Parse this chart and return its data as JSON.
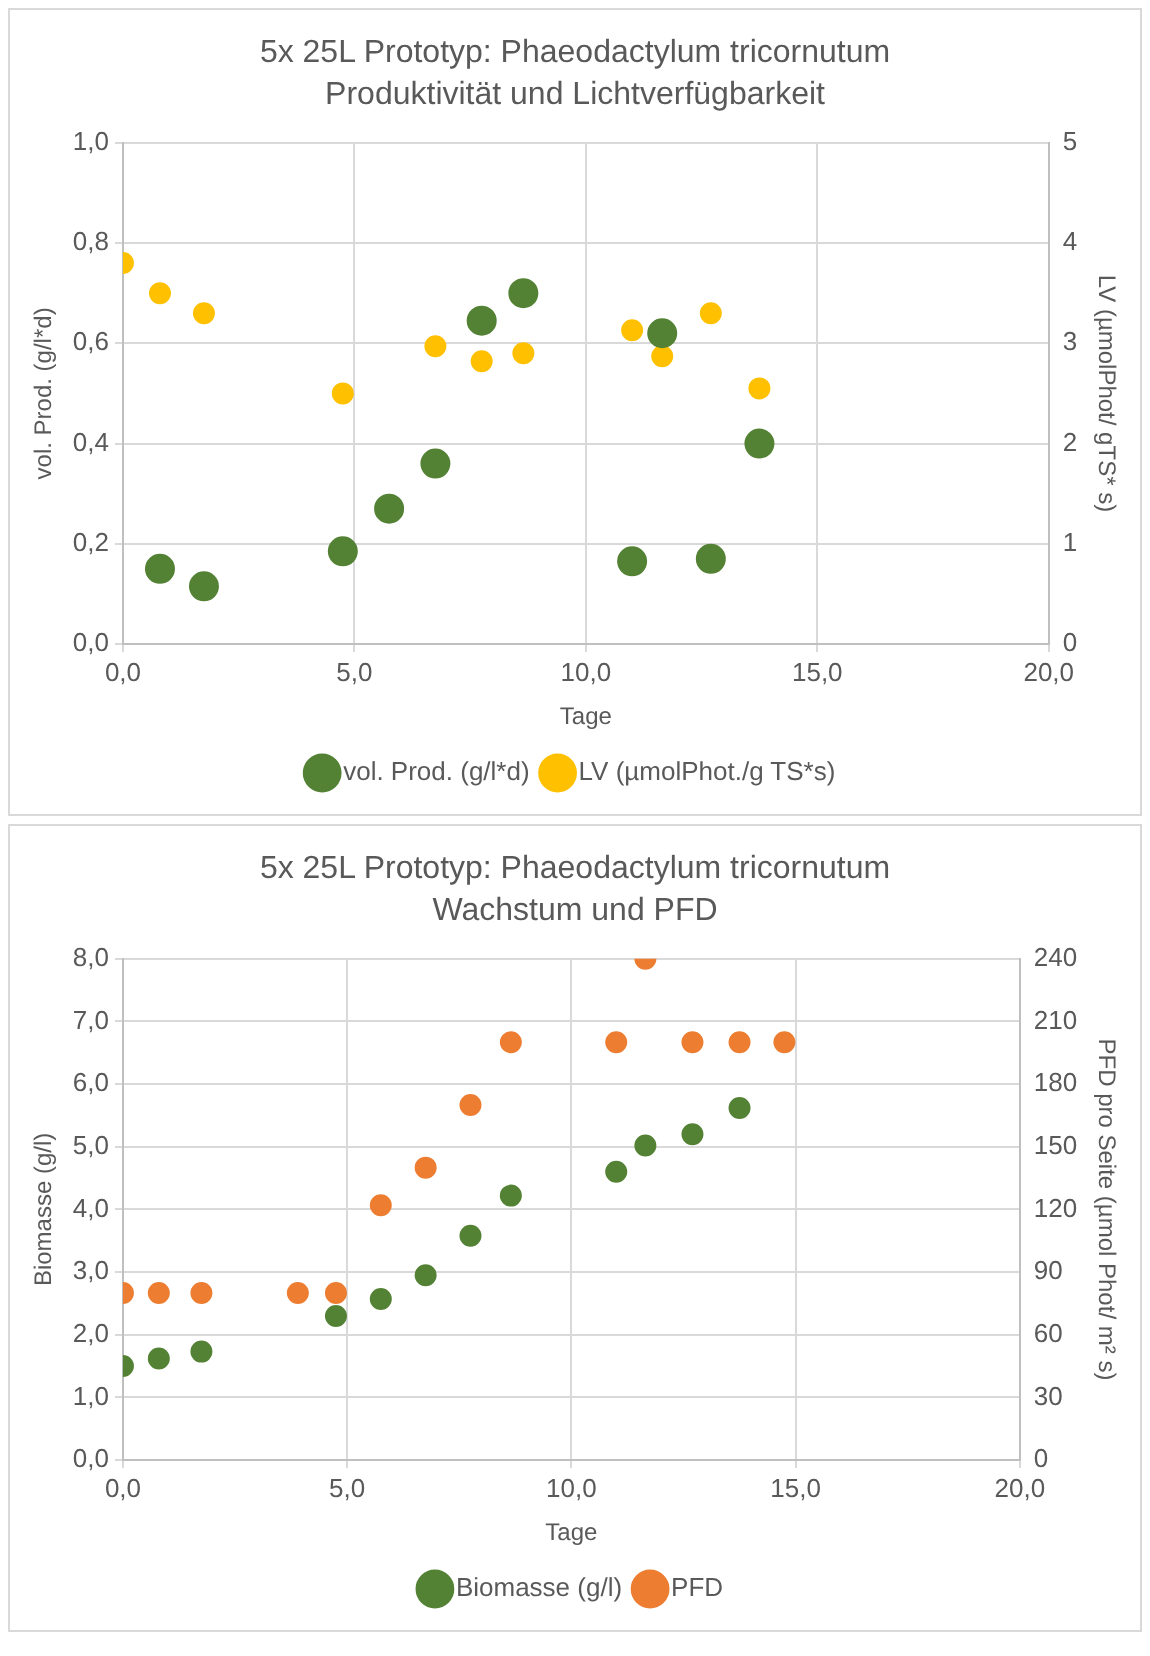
{
  "chart_data": [
    {
      "type": "scatter",
      "title": "5x 25L Prototyp: Phaeodactylum tricornutum",
      "subtitle": "Produktivität und Lichtverfügbarkeit",
      "xlabel": "Tage",
      "ylabel": "vol. Prod. (g/l*d)",
      "y2label": "LV (µmolPhot/ gTS* s)",
      "legend": "bottom",
      "grid": true,
      "marker": "circle",
      "xlim": [
        0,
        20
      ],
      "xticks": [
        {
          "value": 0,
          "label": "0,0"
        },
        {
          "value": 5,
          "label": "5,0"
        },
        {
          "value": 10,
          "label": "10,0"
        },
        {
          "value": 15,
          "label": "15,0"
        },
        {
          "value": 20,
          "label": "20,0"
        }
      ],
      "ylim": [
        0,
        1
      ],
      "yticks": [
        {
          "value": 0,
          "label": "0,0"
        },
        {
          "value": 0.2,
          "label": "0,2"
        },
        {
          "value": 0.4,
          "label": "0,4"
        },
        {
          "value": 0.6,
          "label": "0,6"
        },
        {
          "value": 0.8,
          "label": "0,8"
        },
        {
          "value": 1,
          "label": "1,0"
        }
      ],
      "y2lim": [
        0,
        5
      ],
      "y2ticks": [
        0,
        1,
        2,
        3,
        4,
        5
      ],
      "series": [
        {
          "name": "vol. Prod. (g/l*d)",
          "color": "#548235",
          "x": [
            0.8,
            1.75,
            4.75,
            5.75,
            6.75,
            7.75,
            8.65,
            11.0,
            11.65,
            12.7,
            13.75
          ],
          "values": [
            0.15,
            0.115,
            0.185,
            0.27,
            0.36,
            0.645,
            0.7,
            0.165,
            0.62,
            0.17,
            0.4
          ]
        },
        {
          "name": "LV (µmolPhot./g TS*s)",
          "color": "#ffc000",
          "axis": "y2",
          "x": [
            0,
            0.8,
            1.75,
            4.75,
            6.75,
            7.75,
            8.65,
            11.0,
            11.65,
            12.7,
            13.75
          ],
          "values": [
            3.8,
            3.5,
            3.3,
            2.5,
            2.97,
            2.82,
            2.9,
            3.13,
            2.87,
            3.3,
            2.55
          ]
        }
      ]
    },
    {
      "type": "scatter",
      "title": "5x 25L Prototyp: Phaeodactylum tricornutum",
      "subtitle": "Wachstum und PFD",
      "xlabel": "Tage",
      "ylabel": "Biomasse (g/l)",
      "y2label": "PFD pro Seite (µmol Phot/ m² s)",
      "legend": "bottom",
      "grid": true,
      "marker": "circle",
      "xlim": [
        0,
        20
      ],
      "xticks": [
        {
          "value": 0,
          "label": "0,0"
        },
        {
          "value": 5,
          "label": "5,0"
        },
        {
          "value": 10,
          "label": "10,0"
        },
        {
          "value": 15,
          "label": "15,0"
        },
        {
          "value": 20,
          "label": "20,0"
        }
      ],
      "ylim": [
        0,
        8
      ],
      "yticks": [
        {
          "value": 0,
          "label": "0,0"
        },
        {
          "value": 1,
          "label": "1,0"
        },
        {
          "value": 2,
          "label": "2,0"
        },
        {
          "value": 3,
          "label": "3,0"
        },
        {
          "value": 4,
          "label": "4,0"
        },
        {
          "value": 5,
          "label": "5,0"
        },
        {
          "value": 6,
          "label": "6,0"
        },
        {
          "value": 7,
          "label": "7,0"
        },
        {
          "value": 8,
          "label": "8,0"
        }
      ],
      "y2lim": [
        0,
        240
      ],
      "y2ticks": [
        0,
        30,
        60,
        90,
        120,
        150,
        180,
        210,
        240
      ],
      "series": [
        {
          "name": "Biomasse (g/l)",
          "color": "#548235",
          "x": [
            0,
            0.8,
            1.75,
            4.75,
            5.75,
            6.75,
            7.75,
            8.65,
            11.0,
            11.65,
            12.7,
            13.75
          ],
          "values": [
            1.5,
            1.62,
            1.73,
            2.3,
            2.57,
            2.95,
            3.58,
            4.22,
            4.6,
            5.02,
            5.2,
            5.62
          ]
        },
        {
          "name": "PFD",
          "color": "#ed7d31",
          "axis": "y2",
          "x": [
            0,
            0.8,
            1.75,
            3.9,
            4.75,
            5.75,
            6.75,
            7.75,
            8.65,
            11.0,
            11.65,
            12.7,
            13.75,
            14.75
          ],
          "values": [
            80,
            80,
            80,
            80,
            80,
            122,
            140,
            170,
            200,
            200,
            240,
            200,
            200,
            200
          ]
        }
      ]
    }
  ]
}
